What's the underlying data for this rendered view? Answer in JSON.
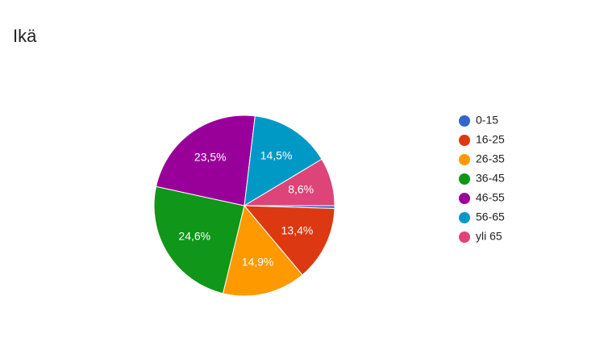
{
  "chart_data": {
    "type": "pie",
    "title": "Ikä",
    "categories": [
      "0-15",
      "16-25",
      "26-35",
      "36-45",
      "46-55",
      "56-65",
      "yli 65"
    ],
    "values": [
      0.5,
      13.4,
      14.9,
      24.6,
      23.5,
      14.5,
      8.6
    ],
    "value_labels": [
      null,
      "13,4%",
      "14,9%",
      "24,6%",
      "23,5%",
      "14,5%",
      "8,6%"
    ],
    "colors": [
      "#3366cc",
      "#dc3912",
      "#ff9900",
      "#109618",
      "#990099",
      "#0099c6",
      "#dd4477"
    ],
    "legend": "right"
  }
}
